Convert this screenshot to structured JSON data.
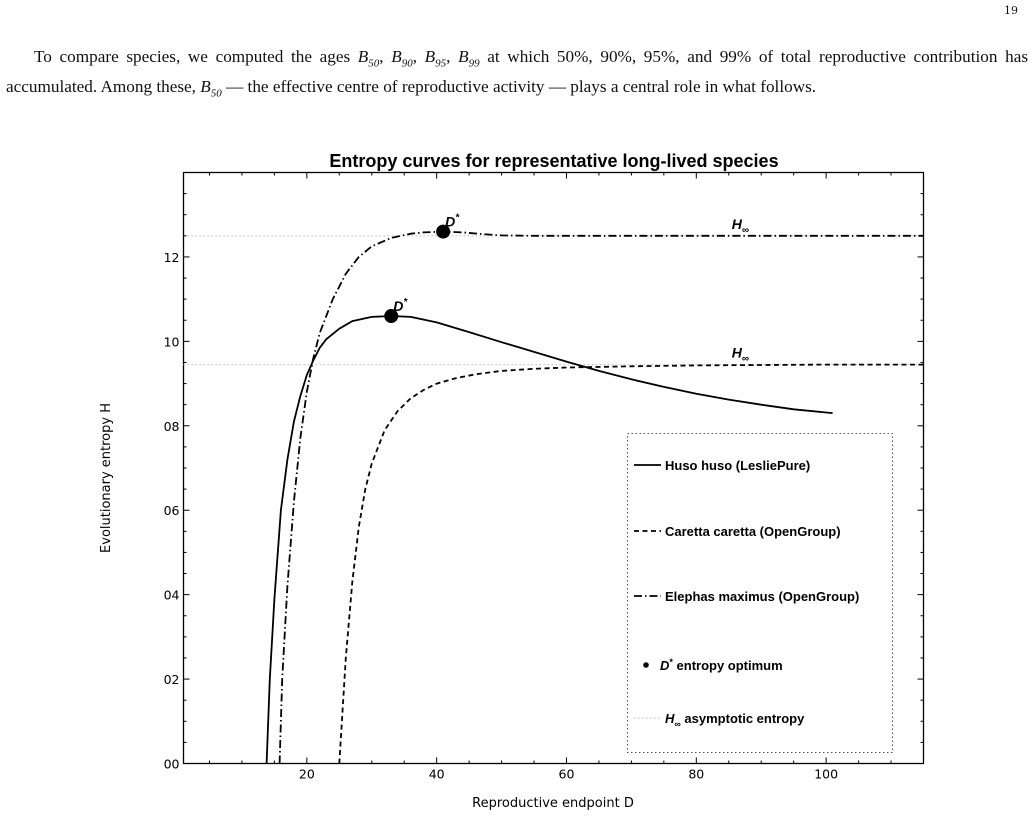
{
  "page": {
    "number": "19",
    "paragraph": {
      "t1": "To compare species, we computed the ages ",
      "t2": " at which 50%, 90%, 95%, and 99% of total reproductive contribution has accumulated. Among these, ",
      "t3": " — the effective centre of reproductive activity — plays a central role in what follows.",
      "symbol": "B",
      "subs": [
        "50",
        "90",
        "95",
        "99"
      ]
    }
  },
  "chart_data": {
    "type": "line",
    "title": "Entropy curves for representative long-lived species",
    "xlabel": "Reproductive endpoint D",
    "ylabel": "Evolutionary entropy H",
    "xlim": [
      1,
      115
    ],
    "ylim": [
      0,
      14
    ],
    "x_ticks": [
      20,
      40,
      60,
      80,
      100
    ],
    "x_tick_labels": [
      "20",
      "40",
      "60",
      "80",
      "100"
    ],
    "y_ticks": [
      0,
      2,
      4,
      6,
      8,
      10,
      12
    ],
    "y_tick_labels": [
      "00",
      "02",
      "04",
      "06",
      "08",
      "10",
      "12"
    ],
    "grid": false,
    "legend_position": "bottom-right",
    "series": [
      {
        "name": "Huso huso (LesliePure)",
        "style": "solid",
        "color": "#000000",
        "x": [
          13.8,
          14.3,
          15,
          16,
          17,
          18,
          19,
          20,
          21,
          22,
          23,
          25,
          27,
          30,
          33,
          36,
          40,
          45,
          50,
          55,
          60,
          65,
          70,
          75,
          80,
          85,
          90,
          95,
          101
        ],
        "y": [
          0,
          2,
          3.9,
          6.0,
          7.2,
          8.1,
          8.7,
          9.2,
          9.55,
          9.85,
          10.05,
          10.3,
          10.48,
          10.58,
          10.6,
          10.58,
          10.45,
          10.22,
          9.98,
          9.75,
          9.52,
          9.3,
          9.1,
          8.92,
          8.76,
          8.62,
          8.5,
          8.39,
          8.3
        ]
      },
      {
        "name": "Caretta caretta (OpenGroup)",
        "style": "dashed",
        "color": "#000000",
        "x": [
          25,
          25.4,
          26,
          27,
          28,
          29,
          30,
          32,
          34,
          36,
          38,
          40,
          43,
          46,
          50,
          55,
          60,
          70,
          80,
          90,
          100,
          115
        ],
        "y": [
          0,
          1,
          2.5,
          4.3,
          5.6,
          6.5,
          7.1,
          7.9,
          8.35,
          8.65,
          8.85,
          9.0,
          9.13,
          9.22,
          9.3,
          9.35,
          9.38,
          9.41,
          9.43,
          9.44,
          9.45,
          9.45
        ]
      },
      {
        "name": "Elephas maximus (OpenGroup)",
        "style": "dashdot",
        "color": "#000000",
        "x": [
          15.8,
          16.2,
          17,
          18,
          19,
          20,
          21,
          22,
          24,
          26,
          28,
          30,
          33,
          36,
          38,
          41,
          44,
          47,
          50,
          55,
          60,
          80,
          100,
          115
        ],
        "y": [
          0,
          2,
          4.2,
          6.2,
          7.7,
          8.8,
          9.6,
          10.2,
          11.0,
          11.6,
          12.0,
          12.25,
          12.45,
          12.55,
          12.58,
          12.6,
          12.58,
          12.54,
          12.51,
          12.5,
          12.5,
          12.5,
          12.5,
          12.5
        ]
      }
    ],
    "optima": [
      {
        "series": "Huso huso (LesliePure)",
        "x": 33,
        "y": 10.6,
        "label": "D",
        "sup": "*"
      },
      {
        "series": "Elephas maximus (OpenGroup)",
        "x": 41,
        "y": 12.6,
        "label": "D",
        "sup": "*"
      }
    ],
    "asymptotes": [
      {
        "y": 12.5,
        "label": "H",
        "sub": "∞",
        "label_x": 87
      },
      {
        "y": 9.45,
        "label": "H",
        "sub": "∞",
        "label_x": 87
      }
    ],
    "legend": [
      {
        "label": "Huso huso (LesliePure)",
        "style": "solid"
      },
      {
        "label": "Caretta caretta (OpenGroup)",
        "style": "dashed"
      },
      {
        "label": "Elephas maximus (OpenGroup)",
        "style": "dashdot"
      },
      {
        "symbol": "D",
        "sup": "*",
        "label": " entropy optimum",
        "style": "dot"
      },
      {
        "symbol": "H",
        "sub": "∞",
        "label": " asymptotic entropy",
        "style": "dotted"
      }
    ]
  }
}
